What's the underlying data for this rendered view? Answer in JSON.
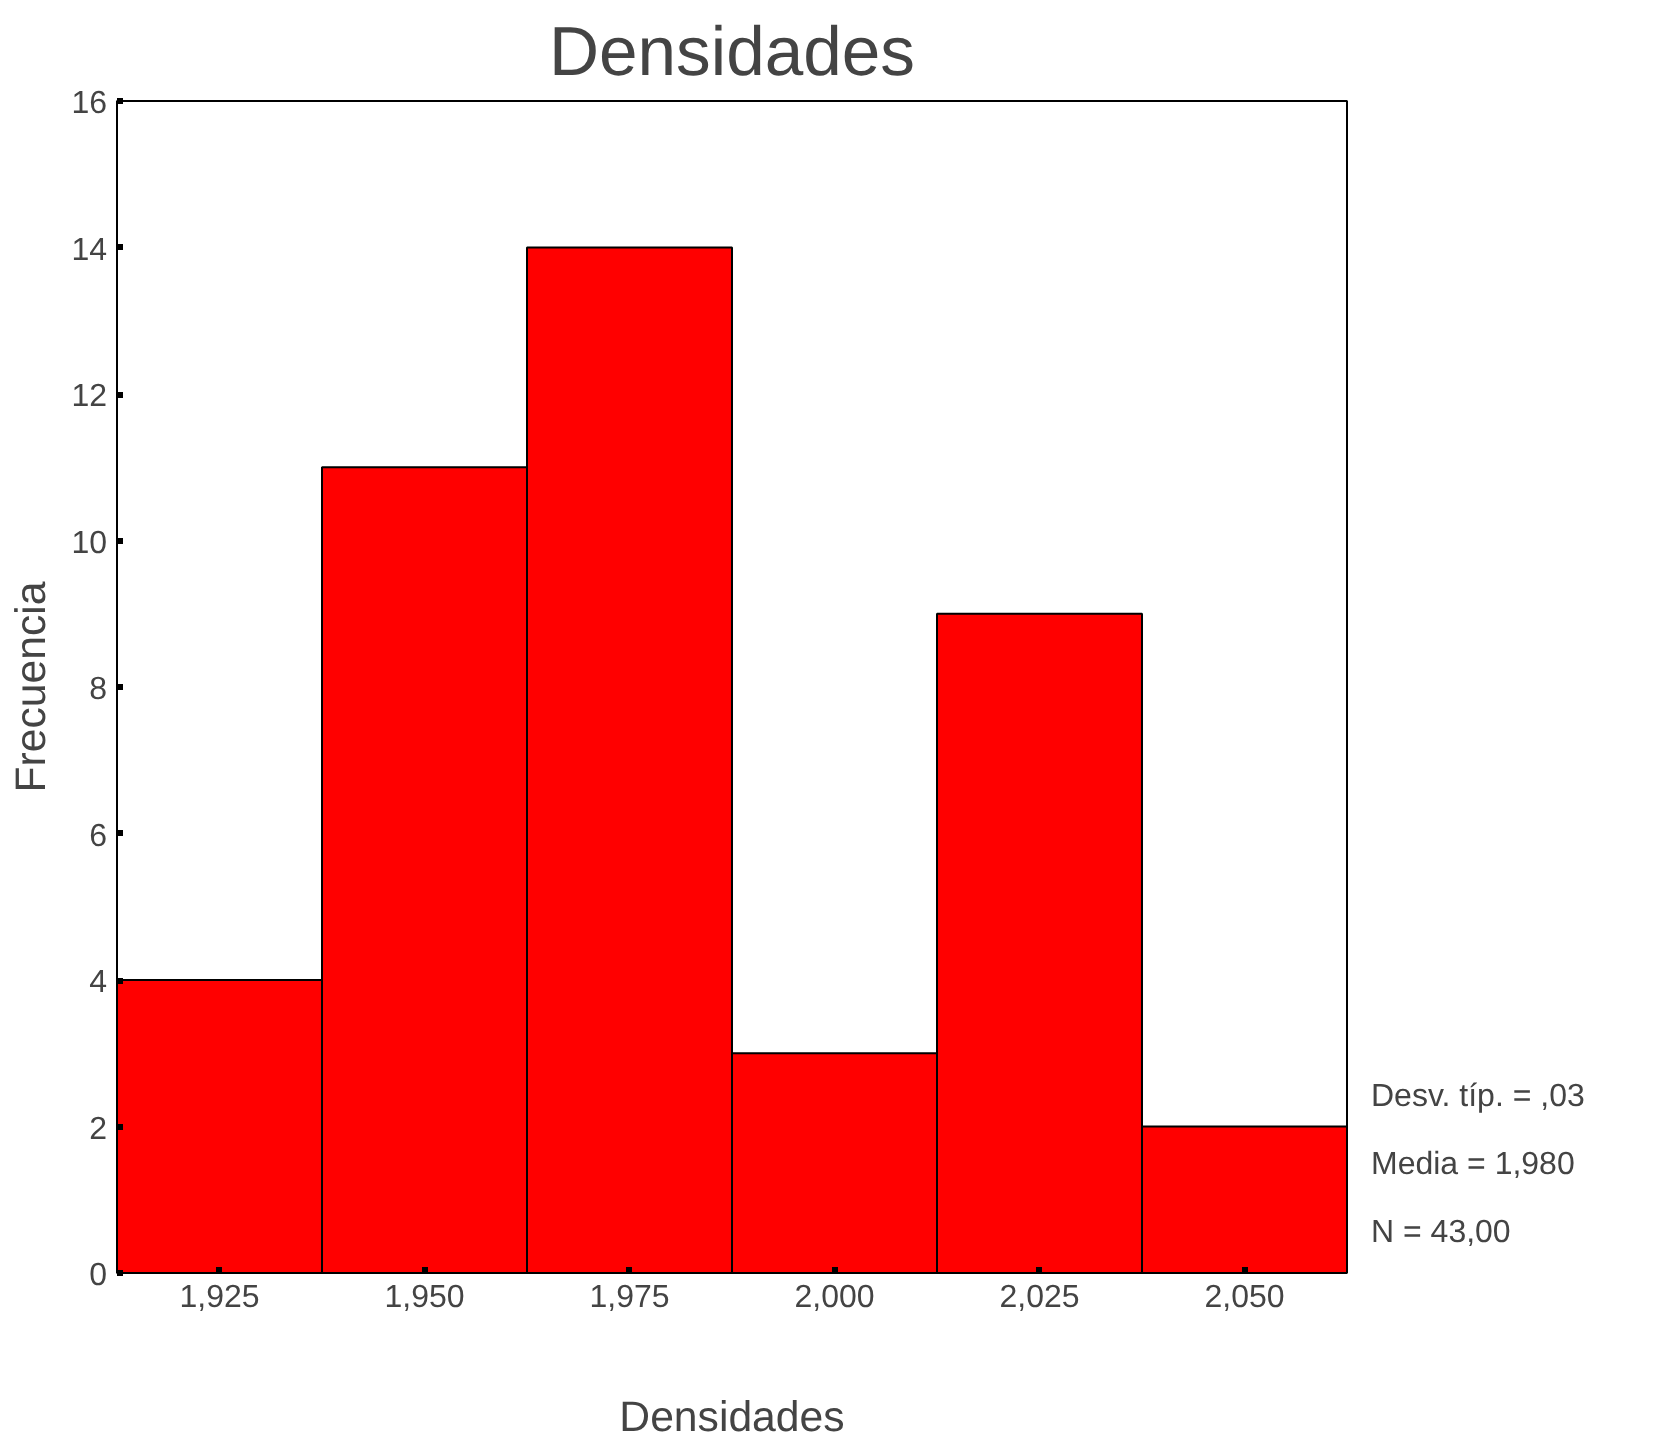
{
  "chart_data": {
    "type": "bar",
    "title": "Densidades",
    "xlabel": "Densidades",
    "ylabel": "Frecuencia",
    "categories": [
      "1,925",
      "1,950",
      "1,975",
      "2,000",
      "2,025",
      "2,050"
    ],
    "values": [
      4,
      11,
      14,
      3,
      9,
      2
    ],
    "color": "#ff0000",
    "ylim": [
      0,
      16
    ],
    "yticks": [
      0,
      2,
      4,
      6,
      8,
      10,
      12,
      14,
      16
    ],
    "grid": false,
    "annotations": [
      "Desv. típ. = ,03",
      "Media = 1,980",
      "N = 43,00"
    ]
  }
}
